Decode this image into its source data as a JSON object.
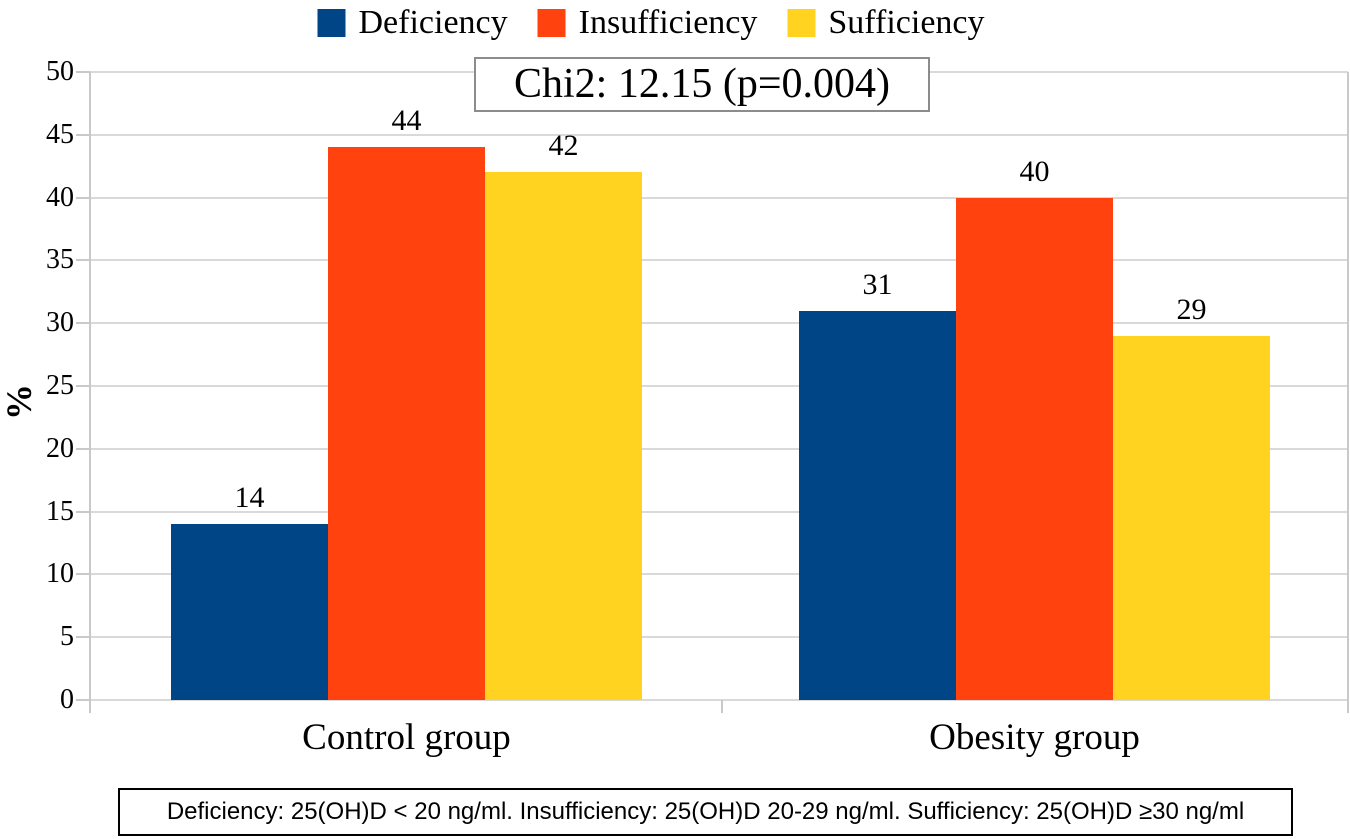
{
  "title": {
    "text": "Chi2: 12.15 (p=0.004)"
  },
  "footnote": {
    "text": "Deficiency: 25(OH)D < 20 ng/ml. Insufficiency: 25(OH)D 20-29 ng/ml. Sufficiency: 25(OH)D ≥30 ng/ml"
  },
  "legend": {
    "position": "top",
    "items": [
      {
        "label": "Deficiency",
        "color": "#004586",
        "icon": "legend-swatch-icon"
      },
      {
        "label": "Insufficiency",
        "color": "#FF420E",
        "icon": "legend-swatch-icon"
      },
      {
        "label": "Sufficiency",
        "color": "#FFD320",
        "icon": "legend-swatch-icon"
      }
    ]
  },
  "chart_data": {
    "type": "bar",
    "categories": [
      "Control group",
      "Obesity group"
    ],
    "series": [
      {
        "name": "Deficiency",
        "values": [
          14,
          31
        ],
        "color": "#004586"
      },
      {
        "name": "Insufficiency",
        "values": [
          44,
          40
        ],
        "color": "#FF420E"
      },
      {
        "name": "Sufficiency",
        "values": [
          42,
          29
        ],
        "color": "#FFD320"
      }
    ],
    "title": "Chi2: 12.15 (p=0.004)",
    "xlabel": "",
    "ylabel": "%",
    "ylim": [
      0,
      50
    ],
    "yticks": [
      0,
      5,
      10,
      15,
      20,
      25,
      30,
      35,
      40,
      45,
      50
    ],
    "grid": true,
    "legend_position": "top",
    "data_labels": true
  },
  "colors": {
    "background": "#ffffff",
    "gridline": "#d9d9d9",
    "axis": "#c9c9c9",
    "title_border": "#8c8c8c",
    "footnote_border": "#000000",
    "text": "#000000"
  }
}
